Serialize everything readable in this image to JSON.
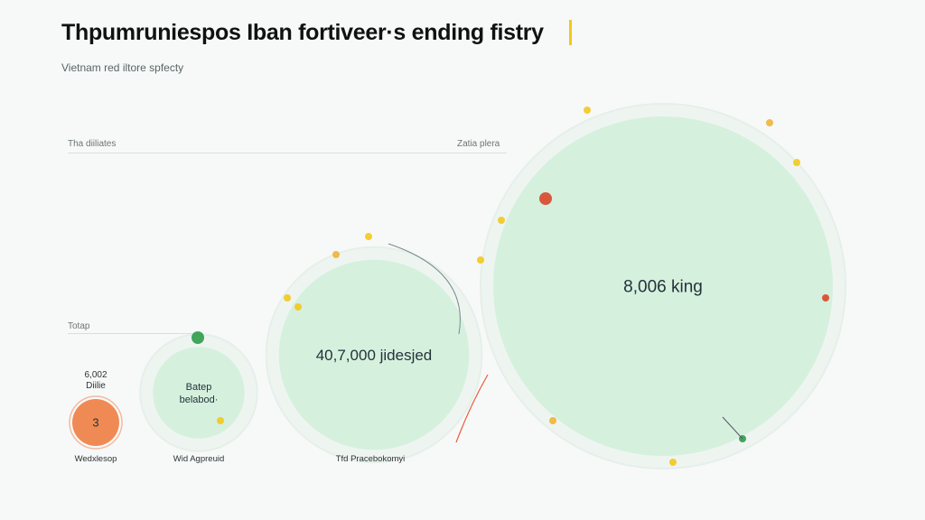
{
  "title": "Thpumruniespos Iban fortiveer·s ending fistry",
  "subtitle": "Vietnam red iltore spfecty",
  "reference": {
    "left_label": "Tha diiliates",
    "right_label": "Zatia plera",
    "mid_label": "Totap"
  },
  "colors": {
    "accent": "#f2c81e",
    "small_bubble": "#f08a55",
    "bubble_fill": "#d6f0de",
    "bubble_ring": "#e6efe9"
  },
  "chart_data": {
    "type": "bubble",
    "title": "Thpumruniespos Iban fortiveer·s ending fistry",
    "subtitle": "Vietnam red iltore spfecty",
    "bubbles": [
      {
        "label": "3",
        "caption": "Wedxlesop",
        "top_text": "6,002\nDiilie",
        "relative_size": 0.13
      },
      {
        "label": "Batep\nbelabod·",
        "caption": "Wid Agpreuid",
        "relative_size": 0.27
      },
      {
        "label": "40,7,000 jidesjed",
        "caption": "Tfd Pracebokomyi",
        "relative_size": 0.56
      },
      {
        "label": "8,006 king",
        "caption": "",
        "relative_size": 1.0
      }
    ]
  }
}
